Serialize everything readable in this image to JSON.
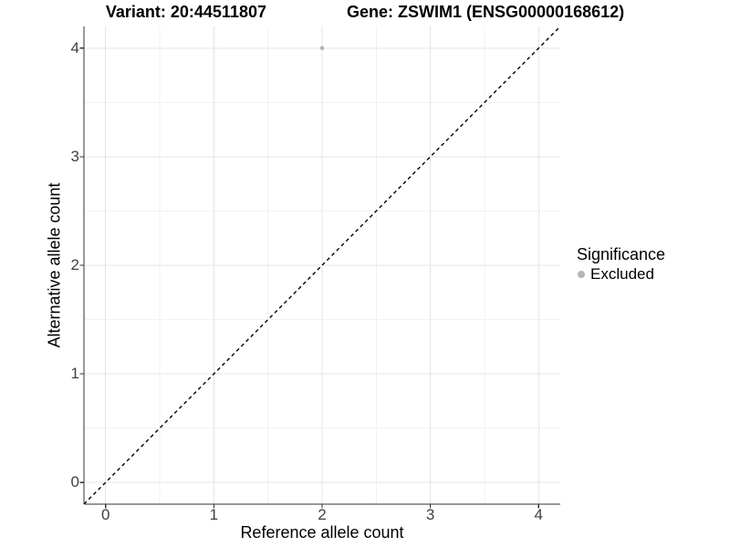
{
  "titles": {
    "variant": "Variant: 20:44511807",
    "gene": "Gene: ZSWIM1 (ENSG00000168612)"
  },
  "chart_data": {
    "type": "scatter",
    "title": "Variant: 20:44511807   Gene: ZSWIM1 (ENSG00000168612)",
    "xlabel": "Reference allele count",
    "ylabel": "Alternative allele count",
    "xlim": [
      -0.2,
      4.2
    ],
    "ylim": [
      -0.2,
      4.2
    ],
    "x_ticks": [
      0,
      1,
      2,
      3,
      4
    ],
    "y_ticks": [
      0,
      1,
      2,
      3,
      4
    ],
    "minor_step": 0.5,
    "grid": true,
    "series": [
      {
        "name": "Excluded",
        "color": "#b5b5b5",
        "point_radius": 2.3,
        "points": [
          {
            "x": 2,
            "y": 4
          }
        ]
      }
    ],
    "abline": {
      "slope": 1,
      "intercept": 0,
      "style": "dashed",
      "color": "#000000"
    },
    "legend": {
      "title": "Significance",
      "position": "right",
      "items": [
        {
          "label": "Excluded",
          "color": "#b5b5b5"
        }
      ]
    }
  },
  "colors": {
    "background": "#ffffff",
    "major_grid": "#e4e4e4",
    "minor_grid": "#f2f2f2",
    "axis": "#333333",
    "tick_text": "#404040",
    "title_text": "#000000"
  }
}
